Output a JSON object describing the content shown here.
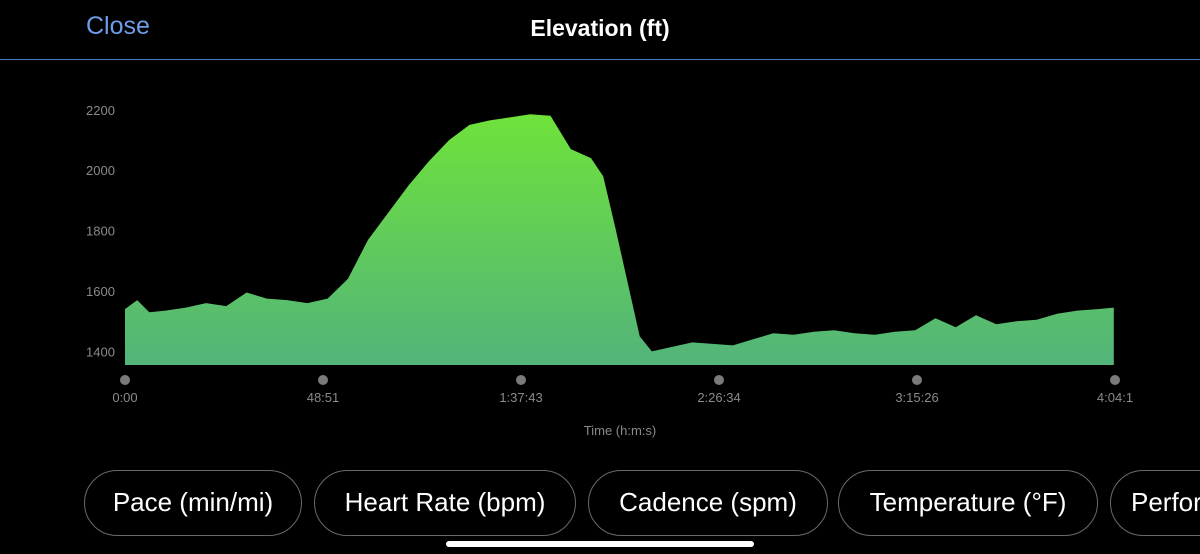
{
  "header": {
    "close_label": "Close",
    "title": "Elevation (ft)"
  },
  "chart_data": {
    "type": "area",
    "title": "Elevation (ft)",
    "xlabel": "Time (h:m:s)",
    "ylabel": "",
    "x_ticks": [
      "0:00",
      "48:51",
      "1:37:43",
      "2:26:34",
      "3:15:26",
      "4:04:1"
    ],
    "y_ticks": [
      1400,
      1600,
      1800,
      2000,
      2200
    ],
    "ylim": [
      1355,
      2230
    ],
    "xlim_minutes": [
      0,
      244.3
    ],
    "grid": false,
    "legend": "none",
    "fill_gradient": [
      "#6fe23a",
      "#52b47a"
    ],
    "x_minutes": [
      0,
      3,
      6,
      10,
      15,
      20,
      25,
      30,
      35,
      40,
      45,
      50,
      55,
      60,
      65,
      70,
      75,
      80,
      85,
      90,
      95,
      100,
      105,
      110,
      115,
      118,
      121,
      124,
      127,
      130,
      135,
      140,
      145,
      150,
      155,
      160,
      165,
      170,
      175,
      180,
      185,
      190,
      195,
      200,
      205,
      210,
      215,
      220,
      225,
      230,
      235,
      240,
      244
    ],
    "y_ft": [
      1540,
      1570,
      1530,
      1535,
      1545,
      1560,
      1550,
      1595,
      1575,
      1570,
      1560,
      1575,
      1640,
      1770,
      1860,
      1950,
      2030,
      2100,
      2150,
      2165,
      2175,
      2185,
      2180,
      2070,
      2040,
      1980,
      1810,
      1630,
      1450,
      1400,
      1415,
      1430,
      1425,
      1420,
      1440,
      1460,
      1455,
      1465,
      1470,
      1460,
      1455,
      1465,
      1470,
      1510,
      1480,
      1520,
      1490,
      1500,
      1505,
      1525,
      1535,
      1540,
      1545
    ]
  },
  "metric_pills": [
    "Pace (min/mi)",
    "Heart Rate (bpm)",
    "Cadence (spm)",
    "Temperature (°F)",
    "Performance Condition"
  ]
}
